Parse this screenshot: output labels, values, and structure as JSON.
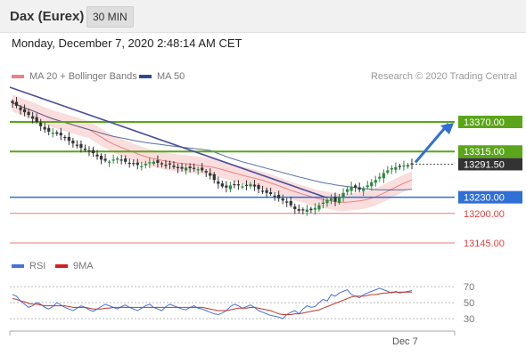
{
  "header": {
    "title": "Dax (Eurex)",
    "timeframe": "30 MIN"
  },
  "datetime": "Monday, December 7, 2020 2:48:14 AM CET",
  "legend": {
    "ma_bb_label": "MA 20 + Bollinger Bands",
    "ma50_label": "MA 50",
    "ma_bb_color": "#f08080",
    "ma50_color": "#2e4d8f"
  },
  "credit": "Research © 2020 Trading Central",
  "colors": {
    "resistance": "#5aa51a",
    "pivot": "#2f6fd6",
    "support": "#e04040",
    "last_price": "#333333",
    "bullish": "#2b8a3e",
    "bearish": "#333333",
    "band": "#f7c6c6"
  },
  "chart_data": [
    {
      "type": "candlestick",
      "x_label": "Dec 7",
      "ylim": [
        13120,
        13440
      ],
      "levels": [
        {
          "value": 13370.0,
          "label": "13370.00",
          "kind": "resistance"
        },
        {
          "value": 13315.0,
          "label": "13315.00",
          "kind": "resistance"
        },
        {
          "value": 13291.5,
          "label": "13291.50",
          "kind": "last"
        },
        {
          "value": 13230.0,
          "label": "13230.00",
          "kind": "pivot"
        },
        {
          "value": 13200.0,
          "label": "13200.00",
          "kind": "support"
        },
        {
          "value": 13145.0,
          "label": "13145.00",
          "kind": "support"
        }
      ],
      "arrow": {
        "from": 13291.5,
        "to": 13370.0,
        "direction": "up"
      },
      "series_close": [
        13405,
        13400,
        13392,
        13388,
        13383,
        13376,
        13370,
        13362,
        13356,
        13352,
        13350,
        13348,
        13345,
        13340,
        13335,
        13330,
        13326,
        13322,
        13318,
        13315,
        13312,
        13306,
        13300,
        13298,
        13296,
        13300,
        13302,
        13299,
        13296,
        13294,
        13292,
        13290,
        13288,
        13292,
        13295,
        13296,
        13294,
        13292,
        13290,
        13291,
        13286,
        13284,
        13283,
        13285,
        13284,
        13283,
        13282,
        13280,
        13276,
        13270,
        13262,
        13255,
        13250,
        13248,
        13252,
        13254,
        13252,
        13250,
        13252,
        13254,
        13250,
        13245,
        13242,
        13238,
        13236,
        13232,
        13228,
        13224,
        13220,
        13215,
        13208,
        13205,
        13206,
        13207,
        13206,
        13210,
        13215,
        13220,
        13225,
        13228,
        13222,
        13230,
        13238,
        13245,
        13250,
        13248,
        13244,
        13246,
        13252,
        13258,
        13262,
        13268,
        13275,
        13280,
        13284,
        13286,
        13288,
        13289,
        13290,
        13291
      ]
    },
    {
      "type": "line",
      "title": "",
      "ylim": [
        20,
        80
      ],
      "ticks": [
        "70",
        "50",
        "30"
      ],
      "series": [
        {
          "name": "RSI",
          "color": "#4a72d8",
          "values": [
            60,
            58,
            52,
            48,
            44,
            46,
            50,
            48,
            44,
            42,
            45,
            50,
            47,
            44,
            42,
            40,
            43,
            46,
            44,
            41,
            39,
            42,
            45,
            48,
            46,
            44,
            42,
            45,
            47,
            44,
            42,
            40,
            43,
            46,
            48,
            44,
            42,
            40,
            45,
            48,
            46,
            44,
            42,
            41,
            44,
            46,
            43,
            42,
            40,
            38,
            36,
            35,
            37,
            40,
            45,
            48,
            46,
            43,
            45,
            47,
            44,
            40,
            38,
            36,
            34,
            33,
            32,
            30,
            35,
            38,
            40,
            36,
            42,
            46,
            44,
            45,
            50,
            54,
            52,
            60,
            58,
            62,
            64,
            66,
            60,
            58,
            56,
            60,
            62,
            64,
            66,
            68,
            66,
            64,
            62,
            64,
            62,
            63,
            64,
            65
          ]
        },
        {
          "name": "9MA",
          "color": "#c0392b",
          "values": [
            55,
            54,
            52,
            51,
            49,
            48,
            48,
            47,
            46,
            46,
            46,
            46,
            46,
            46,
            45,
            44,
            44,
            44,
            44,
            43,
            42,
            42,
            42,
            43,
            43,
            44,
            44,
            44,
            44,
            44,
            44,
            44,
            44,
            44,
            44,
            44,
            44,
            44,
            44,
            44,
            44,
            44,
            44,
            44,
            44,
            44,
            44,
            44,
            43,
            42,
            41,
            40,
            40,
            40,
            41,
            42,
            43,
            43,
            43,
            44,
            44,
            43,
            42,
            41,
            40,
            38,
            36,
            35,
            35,
            35,
            36,
            36,
            37,
            38,
            39,
            40,
            41,
            43,
            45,
            47,
            49,
            51,
            53,
            55,
            57,
            58,
            58,
            58,
            59,
            60,
            60,
            61,
            62,
            62,
            63,
            63,
            63,
            63,
            63,
            63
          ]
        }
      ]
    }
  ]
}
